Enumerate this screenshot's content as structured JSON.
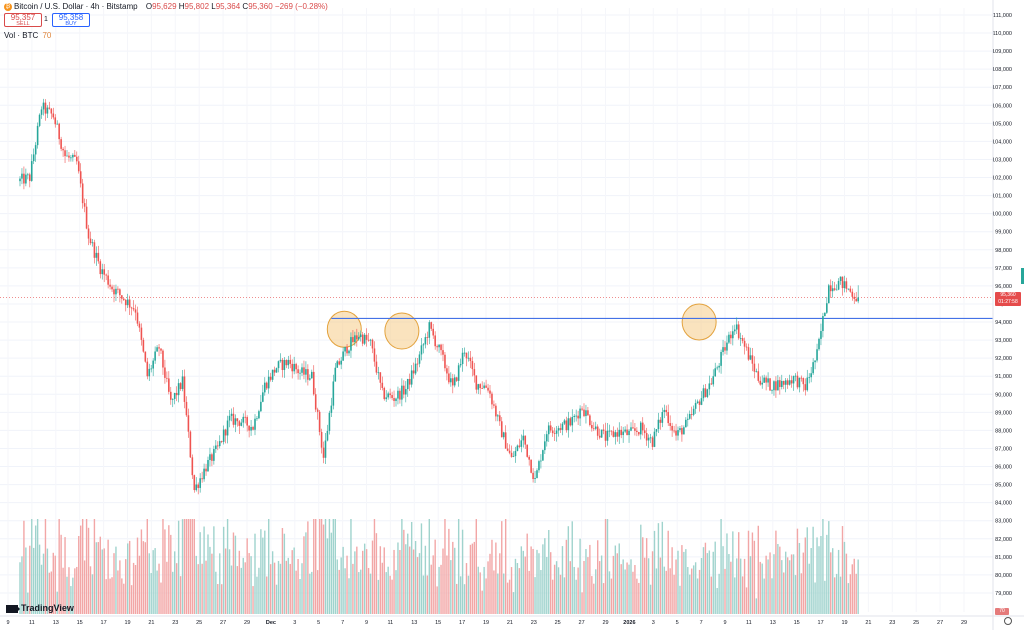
{
  "header": {
    "symbol_title": "Bitcoin / U.S. Dollar · 4h · Bitstamp",
    "coin_icon": "bitcoin-icon",
    "ohlc": [
      {
        "label": "O",
        "value": "95,629"
      },
      {
        "label": "H",
        "value": "95,802"
      },
      {
        "label": "L",
        "value": "95,364"
      },
      {
        "label": "C",
        "value": "95,360"
      },
      {
        "label": "",
        "value": "−269 (−0.28%)"
      }
    ],
    "sell_price": "95,357",
    "sell_label": "SELL",
    "spread": "1",
    "buy_price": "95,358",
    "buy_label": "BUY",
    "volume_label": "Vol · BTC",
    "volume_value": "70"
  },
  "current_price_tag": {
    "price": "95,360",
    "countdown": "01:27:58"
  },
  "volume_tag": "70",
  "branding": "TradingView",
  "colors": {
    "up": "#26a69a",
    "down": "#ef5350",
    "up_volume": "#9fd3cd",
    "down_volume": "#f2a6a6",
    "support_line": "#4472e6",
    "highlight_fill": "#f5c77e",
    "highlight_stroke": "#e3a23d",
    "price_line": "#e54b4b"
  },
  "chart_data": {
    "type": "candlestick",
    "interval": "4h",
    "y_range": [
      78000,
      111000
    ],
    "y_ticks": [
      "111,000",
      "110,000",
      "109,000",
      "108,000",
      "107,000",
      "106,000",
      "105,000",
      "104,000",
      "103,000",
      "102,000",
      "101,000",
      "100,000",
      "99,000",
      "98,000",
      "97,000",
      "96,000",
      "95,000",
      "94,000",
      "93,000",
      "92,000",
      "91,000",
      "90,000",
      "89,000",
      "88,000",
      "87,000",
      "86,000",
      "85,000",
      "84,000",
      "83,000",
      "82,000",
      "81,000",
      "80,000",
      "79,000"
    ],
    "x_ticks": [
      "9",
      "11",
      "13",
      "15",
      "17",
      "19",
      "21",
      "23",
      "25",
      "27",
      "29",
      "Dec",
      "3",
      "5",
      "7",
      "9",
      "11",
      "13",
      "15",
      "17",
      "19",
      "21",
      "23",
      "25",
      "27",
      "29",
      "2026",
      "3",
      "5",
      "7",
      "9",
      "11",
      "13",
      "15",
      "17",
      "19",
      "21",
      "23",
      "25",
      "27",
      "29"
    ],
    "x_range_days": [
      -1,
      80
    ],
    "price_path": [
      [
        0,
        101800
      ],
      [
        1,
        102000
      ],
      [
        2,
        105900
      ],
      [
        3,
        105400
      ],
      [
        4,
        103200
      ],
      [
        5,
        102800
      ],
      [
        6,
        98800
      ],
      [
        7,
        97000
      ],
      [
        8,
        95900
      ],
      [
        9,
        95300
      ],
      [
        10,
        94700
      ],
      [
        11,
        91000
      ],
      [
        12,
        92600
      ],
      [
        13,
        89500
      ],
      [
        14,
        90700
      ],
      [
        15,
        84700
      ],
      [
        16,
        86000
      ],
      [
        17,
        87000
      ],
      [
        18,
        88600
      ],
      [
        19,
        88500
      ],
      [
        20,
        88200
      ],
      [
        21,
        90500
      ],
      [
        22,
        91500
      ],
      [
        23,
        91800
      ],
      [
        24,
        91200
      ],
      [
        25,
        91000
      ],
      [
        26,
        86500
      ],
      [
        27,
        91300
      ],
      [
        28,
        92600
      ],
      [
        29,
        93300
      ],
      [
        30,
        92800
      ],
      [
        31,
        90000
      ],
      [
        32,
        89800
      ],
      [
        33,
        90300
      ],
      [
        34,
        91800
      ],
      [
        35,
        93700
      ],
      [
        36,
        92200
      ],
      [
        37,
        90300
      ],
      [
        38,
        92500
      ],
      [
        39,
        90600
      ],
      [
        40,
        90400
      ],
      [
        41,
        88200
      ],
      [
        42,
        86400
      ],
      [
        43,
        87600
      ],
      [
        44,
        85200
      ],
      [
        45,
        88000
      ],
      [
        46,
        88200
      ],
      [
        47,
        88400
      ],
      [
        48,
        89300
      ],
      [
        49,
        88200
      ],
      [
        50,
        87600
      ],
      [
        51,
        87900
      ],
      [
        52,
        87800
      ],
      [
        53,
        88100
      ],
      [
        54,
        87400
      ],
      [
        55,
        89200
      ],
      [
        56,
        87700
      ],
      [
        57,
        88400
      ],
      [
        58,
        89700
      ],
      [
        59,
        90700
      ],
      [
        60,
        92300
      ],
      [
        61,
        93900
      ],
      [
        62,
        92400
      ],
      [
        63,
        90900
      ],
      [
        64,
        90500
      ],
      [
        65,
        90600
      ],
      [
        66,
        90900
      ],
      [
        67,
        90400
      ],
      [
        68,
        92200
      ],
      [
        69,
        96000
      ],
      [
        70,
        96200
      ],
      [
        71,
        95600
      ],
      [
        71.4,
        95360
      ]
    ],
    "volume_range": [
      0,
      2200
    ],
    "support_line": {
      "price": 94200,
      "from_day": 26.5,
      "to_day": 80
    },
    "highlighted_zones": [
      {
        "day": 27.6,
        "price": 93600
      },
      {
        "day": 32.5,
        "price": 93500
      },
      {
        "day": 57.8,
        "price": 94000
      }
    ],
    "last_price": 95360
  }
}
